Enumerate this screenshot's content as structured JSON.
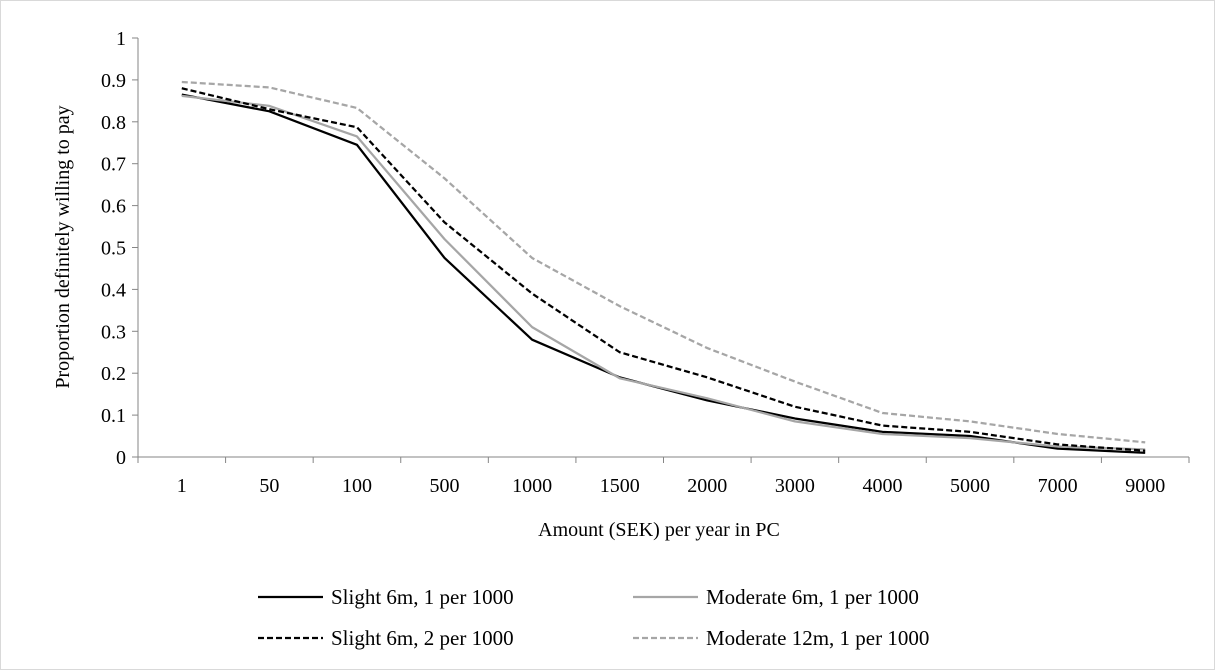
{
  "chart_data": {
    "type": "line",
    "title": "",
    "xlabel": "Amount (SEK) per year in PC",
    "ylabel": "Proportion definitely willing to pay",
    "ylim": [
      0,
      1
    ],
    "yticks": [
      "0",
      "0.1",
      "0.2",
      "0.3",
      "0.4",
      "0.5",
      "0.6",
      "0.7",
      "0.8",
      "0.9",
      "1"
    ],
    "categories": [
      "1",
      "50",
      "100",
      "500",
      "1000",
      "1500",
      "2000",
      "3000",
      "4000",
      "5000",
      "7000",
      "9000"
    ],
    "grid": false,
    "legend_position": "bottom",
    "series": [
      {
        "name": "Slight 6m, 1 per 1000",
        "color": "#000000",
        "dash": "solid",
        "values": [
          0.865,
          0.825,
          0.745,
          0.475,
          0.28,
          0.19,
          0.135,
          0.092,
          0.06,
          0.05,
          0.02,
          0.01
        ]
      },
      {
        "name": "Moderate 6m, 1 per 1000",
        "color": "#a6a6a6",
        "dash": "solid",
        "values": [
          0.862,
          0.838,
          0.765,
          0.52,
          0.31,
          0.188,
          0.14,
          0.085,
          0.055,
          0.045,
          0.025,
          0.018
        ]
      },
      {
        "name": "Slight 6m, 2 per 1000",
        "color": "#000000",
        "dash": "dashed",
        "values": [
          0.88,
          0.83,
          0.787,
          0.56,
          0.39,
          0.25,
          0.19,
          0.12,
          0.075,
          0.06,
          0.03,
          0.015
        ]
      },
      {
        "name": "Moderate 12m, 1 per 1000",
        "color": "#a6a6a6",
        "dash": "dashed",
        "values": [
          0.895,
          0.882,
          0.833,
          0.665,
          0.475,
          0.36,
          0.26,
          0.18,
          0.105,
          0.085,
          0.055,
          0.035
        ]
      }
    ]
  }
}
